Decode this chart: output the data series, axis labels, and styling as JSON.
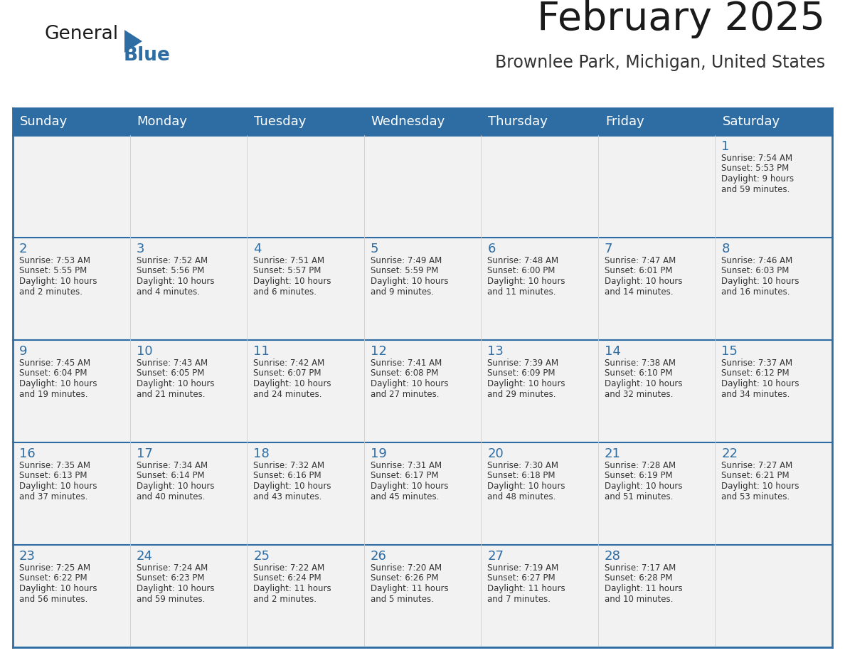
{
  "title": "February 2025",
  "subtitle": "Brownlee Park, Michigan, United States",
  "header_bg": "#2E6DA4",
  "header_text_color": "#FFFFFF",
  "cell_bg": "#F2F2F2",
  "border_color": "#2E6DA4",
  "day_headers": [
    "Sunday",
    "Monday",
    "Tuesday",
    "Wednesday",
    "Thursday",
    "Friday",
    "Saturday"
  ],
  "title_color": "#1a1a1a",
  "subtitle_color": "#333333",
  "day_number_color": "#2E6DA4",
  "cell_text_color": "#333333",
  "logo_general_color": "#1a1a1a",
  "logo_blue_color": "#2E6DA4",
  "calendar_data": [
    [
      null,
      null,
      null,
      null,
      null,
      null,
      {
        "day": 1,
        "sunrise": "7:54 AM",
        "sunset": "5:53 PM",
        "daylight": "9 hours and 59 minutes."
      }
    ],
    [
      {
        "day": 2,
        "sunrise": "7:53 AM",
        "sunset": "5:55 PM",
        "daylight": "10 hours and 2 minutes."
      },
      {
        "day": 3,
        "sunrise": "7:52 AM",
        "sunset": "5:56 PM",
        "daylight": "10 hours and 4 minutes."
      },
      {
        "day": 4,
        "sunrise": "7:51 AM",
        "sunset": "5:57 PM",
        "daylight": "10 hours and 6 minutes."
      },
      {
        "day": 5,
        "sunrise": "7:49 AM",
        "sunset": "5:59 PM",
        "daylight": "10 hours and 9 minutes."
      },
      {
        "day": 6,
        "sunrise": "7:48 AM",
        "sunset": "6:00 PM",
        "daylight": "10 hours and 11 minutes."
      },
      {
        "day": 7,
        "sunrise": "7:47 AM",
        "sunset": "6:01 PM",
        "daylight": "10 hours and 14 minutes."
      },
      {
        "day": 8,
        "sunrise": "7:46 AM",
        "sunset": "6:03 PM",
        "daylight": "10 hours and 16 minutes."
      }
    ],
    [
      {
        "day": 9,
        "sunrise": "7:45 AM",
        "sunset": "6:04 PM",
        "daylight": "10 hours and 19 minutes."
      },
      {
        "day": 10,
        "sunrise": "7:43 AM",
        "sunset": "6:05 PM",
        "daylight": "10 hours and 21 minutes."
      },
      {
        "day": 11,
        "sunrise": "7:42 AM",
        "sunset": "6:07 PM",
        "daylight": "10 hours and 24 minutes."
      },
      {
        "day": 12,
        "sunrise": "7:41 AM",
        "sunset": "6:08 PM",
        "daylight": "10 hours and 27 minutes."
      },
      {
        "day": 13,
        "sunrise": "7:39 AM",
        "sunset": "6:09 PM",
        "daylight": "10 hours and 29 minutes."
      },
      {
        "day": 14,
        "sunrise": "7:38 AM",
        "sunset": "6:10 PM",
        "daylight": "10 hours and 32 minutes."
      },
      {
        "day": 15,
        "sunrise": "7:37 AM",
        "sunset": "6:12 PM",
        "daylight": "10 hours and 34 minutes."
      }
    ],
    [
      {
        "day": 16,
        "sunrise": "7:35 AM",
        "sunset": "6:13 PM",
        "daylight": "10 hours and 37 minutes."
      },
      {
        "day": 17,
        "sunrise": "7:34 AM",
        "sunset": "6:14 PM",
        "daylight": "10 hours and 40 minutes."
      },
      {
        "day": 18,
        "sunrise": "7:32 AM",
        "sunset": "6:16 PM",
        "daylight": "10 hours and 43 minutes."
      },
      {
        "day": 19,
        "sunrise": "7:31 AM",
        "sunset": "6:17 PM",
        "daylight": "10 hours and 45 minutes."
      },
      {
        "day": 20,
        "sunrise": "7:30 AM",
        "sunset": "6:18 PM",
        "daylight": "10 hours and 48 minutes."
      },
      {
        "day": 21,
        "sunrise": "7:28 AM",
        "sunset": "6:19 PM",
        "daylight": "10 hours and 51 minutes."
      },
      {
        "day": 22,
        "sunrise": "7:27 AM",
        "sunset": "6:21 PM",
        "daylight": "10 hours and 53 minutes."
      }
    ],
    [
      {
        "day": 23,
        "sunrise": "7:25 AM",
        "sunset": "6:22 PM",
        "daylight": "10 hours and 56 minutes."
      },
      {
        "day": 24,
        "sunrise": "7:24 AM",
        "sunset": "6:23 PM",
        "daylight": "10 hours and 59 minutes."
      },
      {
        "day": 25,
        "sunrise": "7:22 AM",
        "sunset": "6:24 PM",
        "daylight": "11 hours and 2 minutes."
      },
      {
        "day": 26,
        "sunrise": "7:20 AM",
        "sunset": "6:26 PM",
        "daylight": "11 hours and 5 minutes."
      },
      {
        "day": 27,
        "sunrise": "7:19 AM",
        "sunset": "6:27 PM",
        "daylight": "11 hours and 7 minutes."
      },
      {
        "day": 28,
        "sunrise": "7:17 AM",
        "sunset": "6:28 PM",
        "daylight": "11 hours and 10 minutes."
      },
      null
    ]
  ]
}
